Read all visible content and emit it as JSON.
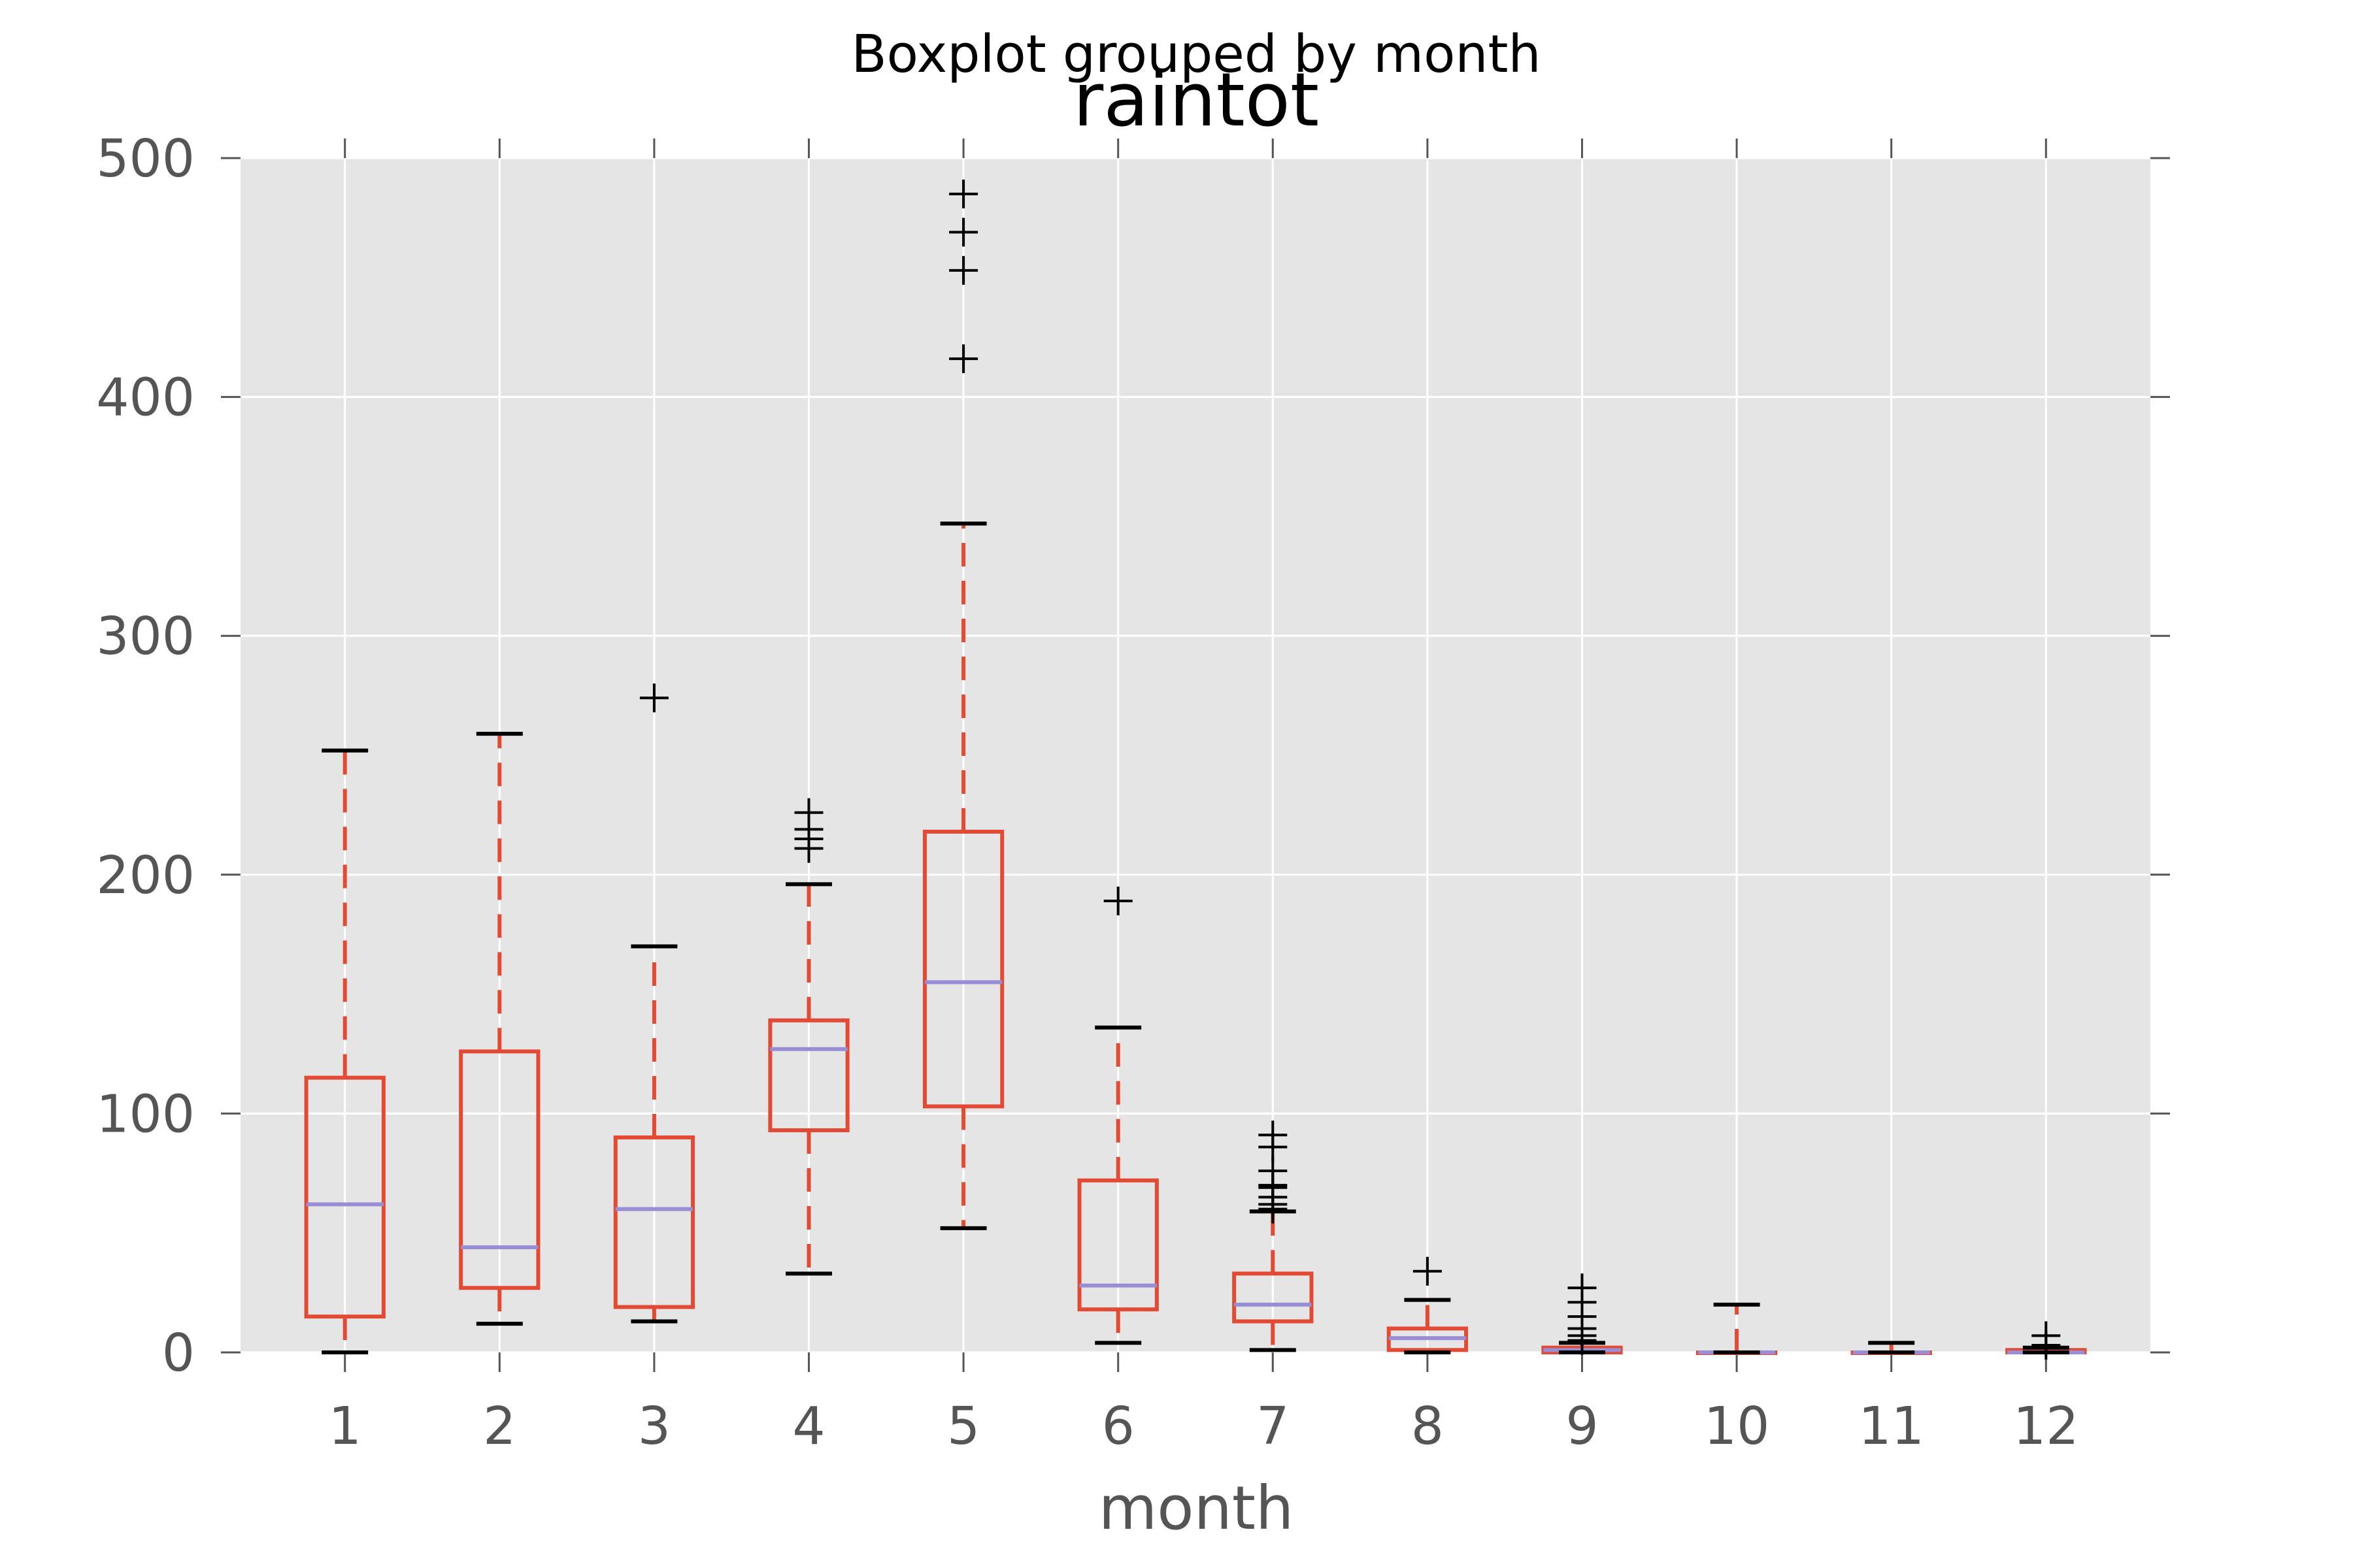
{
  "chart_data": {
    "type": "boxplot",
    "suptitle": "Boxplot grouped by month",
    "title": "raintot",
    "xlabel": "month",
    "ylabel": "",
    "ylim": [
      0,
      500
    ],
    "yticks": [
      0,
      100,
      200,
      300,
      400,
      500
    ],
    "grid": true,
    "colors": {
      "plot_background": "#e5e5e5",
      "grid": "#ffffff",
      "box": "#e24a33",
      "median": "#988ed5",
      "cap": "#000000",
      "flier": "#000000",
      "tick_label": "#555555"
    },
    "categories": [
      "1",
      "2",
      "3",
      "4",
      "5",
      "6",
      "7",
      "8",
      "9",
      "10",
      "11",
      "12"
    ],
    "boxes": [
      {
        "category": "1",
        "whisker_low": 0,
        "q1": 15,
        "median": 62,
        "q3": 115,
        "whisker_high": 252,
        "fliers": []
      },
      {
        "category": "2",
        "whisker_low": 12,
        "q1": 27,
        "median": 44,
        "q3": 126,
        "whisker_high": 259,
        "fliers": []
      },
      {
        "category": "3",
        "whisker_low": 13,
        "q1": 19,
        "median": 60,
        "q3": 90,
        "whisker_high": 170,
        "fliers": [
          274
        ]
      },
      {
        "category": "4",
        "whisker_low": 33,
        "q1": 93,
        "median": 127,
        "q3": 139,
        "whisker_high": 196,
        "fliers": [
          211,
          215,
          219,
          226
        ]
      },
      {
        "category": "5",
        "whisker_low": 52,
        "q1": 103,
        "median": 155,
        "q3": 218,
        "whisker_high": 347,
        "fliers": [
          416,
          453,
          469,
          485
        ]
      },
      {
        "category": "6",
        "whisker_low": 4,
        "q1": 18,
        "median": 28,
        "q3": 72,
        "whisker_high": 136,
        "fliers": [
          189
        ]
      },
      {
        "category": "7",
        "whisker_low": 1,
        "q1": 13,
        "median": 20,
        "q3": 33,
        "whisker_high": 59,
        "fliers": [
          60,
          62,
          65,
          69,
          70,
          76,
          86,
          91
        ]
      },
      {
        "category": "8",
        "whisker_low": 0,
        "q1": 1,
        "median": 6,
        "q3": 10,
        "whisker_high": 22,
        "fliers": [
          34
        ]
      },
      {
        "category": "9",
        "whisker_low": 0,
        "q1": 0,
        "median": 1,
        "q3": 2,
        "whisker_high": 4,
        "fliers": [
          5,
          7,
          10,
          15,
          21,
          27
        ]
      },
      {
        "category": "10",
        "whisker_low": 0,
        "q1": 0,
        "median": 0,
        "q3": 0,
        "whisker_high": 20,
        "fliers": []
      },
      {
        "category": "11",
        "whisker_low": 0,
        "q1": 0,
        "median": 0,
        "q3": 0,
        "whisker_high": 4,
        "fliers": []
      },
      {
        "category": "12",
        "whisker_low": 0,
        "q1": 0,
        "median": 0,
        "q3": 1,
        "whisker_high": 2,
        "fliers": [
          3,
          7
        ]
      }
    ]
  }
}
